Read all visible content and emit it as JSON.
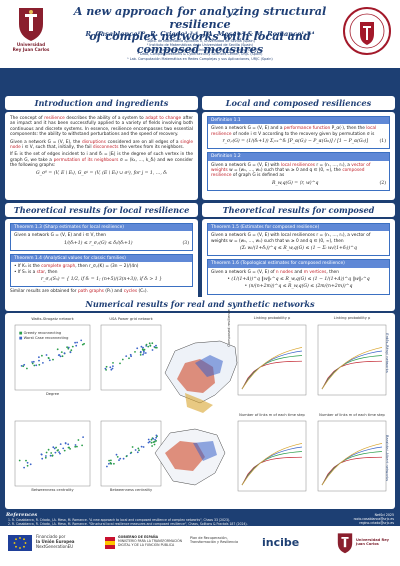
{
  "header": {
    "title_line1": "A new approach for analyzing structural resilience",
    "title_line2": "of complex networks with local and composed measures",
    "authors": "R. Casablanca¹·², R. Criado¹·³·⁴, J.A. Mesa¹·² & M. Romance¹·³·⁴",
    "affiliations": [
      "¹ Dpto. de Matemática Aplicada II, Universidad de Sevilla (Spain)",
      "² Instituto de Matemáticas de la Universidad de Sevilla (Spain)",
      "³ Dpto. de Matemática Aplicada, Universidad Rey Juan Carlos (Spain)",
      "⁴ Data, Complex Networks & Cybersecurity Sciences Center, URJC (Spain)",
      "⁵ Lab. Computación Matemática en Redes Complejas y sus Aplicaciones, URJC (Spain)"
    ],
    "urjc_label_line1": "Universidad",
    "urjc_label_line2": "Rey Juan Carlos",
    "seal_text": "UNIVERSIDAD DE SEVILLA"
  },
  "intro": {
    "heading": "Introduction and ingredients",
    "p1_a": "The concept of ",
    "p1_hl1": "resilience",
    "p1_b": " describes the ability of a system to ",
    "p1_hl2": "adapt to change",
    "p1_c": " after an impact and it has been successfully applied to a variety of fields involving both continuous and discrete systems. In essence, resilience encompasses two essential components: the ability to withstand perturbations and the speed of recovery.",
    "p2_a": "Given a network G = (V, E), the ",
    "p2_hl1": "disruptions",
    "p2_b": " considered are on all edges of a ",
    "p2_hl2": "single node",
    "p2_c": " i ∈ V, such that, initially, the fail ",
    "p2_hl3": "disconnects",
    "p2_d": " the vertex from its neighbors.",
    "p3_a": "If Eᵢ is the set of edges incident to i and δᵢ = |Eᵢ| is the degree of such vertex in the graph G, we take a ",
    "p3_hl": "permutation of its neighbours",
    "p3_b": " σ = (k₁, …, k_δᵢ) and we consider the following graphs:",
    "formula": "G_σ⁰ = (V, E \\ Eᵢ),   G_σʲ = (V, (E \\ Eᵢ) ∪ σʲ), for j = 1, …, δᵢ"
  },
  "local": {
    "heading": "Local and composed resiliences",
    "def1_title": "Definition 1.1",
    "def1_a": "Given a network G = (V, E) and a ",
    "def1_hl1": "performance function",
    "def1_b": " P_α(·), then the ",
    "def1_hl2": "local resilience",
    "def1_c": " of node i ∈ V according to the recovery given by permutation σ is",
    "def1_formula": "r_σ,ᵢ(G) = (1/(δᵢ+1)) Σⱼ₌₁^δᵢ [P_α(Gⱼ) − P_α(G₀)] / [1 − P_α(G₀)]",
    "def1_eq": "(1)",
    "def2_title": "Definition 1.2",
    "def2_a": "Given a network G = (V, E) with ",
    "def2_hl1": "local resiliences",
    "def2_b": " r = (r₁, …, rₙ), a ",
    "def2_hl2": "vector of weights",
    "def2_c": " w = (w₁, …, wₙ) such that wᵢ ≥ 0 and q ∈ (0, ∞), the ",
    "def2_hl3": "composed resilience",
    "def2_d": " of graph G is defined as",
    "def2_formula": "R_w,q(G) = ⟨r, w⟩^q",
    "def2_eq": "(2)"
  },
  "theo_local": {
    "heading": "Theoretical results for local resilience",
    "t13_title": "Theorem 1.3 (Sharp estimates for local resilience)",
    "t13_text": "Given a network G = (V, E) and i ∈ V, then",
    "t13_formula": "1/(δᵢ+1) ≤ r_σ,ᵢ(G) ≤ δᵢ/(δᵢ+1)",
    "t13_eq": "(3)",
    "t14_title": "Theorem 1.4 (Analytical values for classic families)",
    "t14_b1_a": "If Kₙ is the ",
    "t14_b1_hl": "complete graph",
    "t14_b1_b": ", then r_σ,ᵢ(K) = (3n − 2)/(4n)",
    "t14_b2_a": "If Sₙ is a ",
    "t14_b2_hl": "star",
    "t14_b2_b": ", then",
    "t14_cases": "r_σ,ᵢ(Sₙ) = { 1/2, if δᵢ = 1;  (n+5)/(3(n+3)), if δᵢ > 1 }",
    "footer_a": "Similar results are obtained for ",
    "footer_hl": "path graphs",
    "footer_b": " (Pₙ) and ",
    "footer_hl2": "cycles",
    "footer_c": " (Cₙ)."
  },
  "theo_composed": {
    "heading": "Theoretical results for composed resilience",
    "t15_title": "Theorem 1.5 (Estimates for composed resilience)",
    "t15_text": "Given a network G = (V, E) with local resiliences r = (r₁, …, rₙ), a vector of weights w = (w₁, …, wₙ) such that wᵢ ≥ 0 and q ∈ (0, ∞), then",
    "t15_formula": "(Σᵢ wᵢ/(1+δᵢ))^q ≤ R_w,q(G) ≤ (1 − Σᵢ wᵢ/(1+δᵢ))^q",
    "t16_title": "Theorem 1.6 (Topological estimates for composed resilience)",
    "t16_text_a": "Given a network G = (V, E) of ",
    "t16_hl1": "n nodes",
    "t16_text_b": " and ",
    "t16_hl2": "m vertices",
    "t16_text_c": ", then",
    "t16_b1": "(1/(1+Δ))^q ‖w‖₁^q ≤ R_w,q(G) ≤ (1 − 1/(1+Δ))^q ‖w‖₁^q",
    "t16_b2": "(n/(n+2m))^q ≤ R_w,q(G) ≤ (2m/(n+2m))^q"
  },
  "numerical": {
    "heading": "Numerical results for real and synthetic networks",
    "panel1_title": "Watts-Strogatz network",
    "panel2_title": "USA Power grid network",
    "legend_green": "Greedy reconnecting",
    "legend_blue": "Worst Case reconnecting",
    "xlabel_degree": "Degree",
    "xlabel_betweenness": "Betweenness centrality",
    "xlabel_pr": "Pr",
    "right1_title": "Linking probability p",
    "right2_title": "Linking probability p",
    "right3_title": "Number of links m of each time step",
    "right4_title": "Number of links m of each time step",
    "ylabel_composed": "Composed resilience",
    "ylabel_er": "Erdős–Rényi networks",
    "ylabel_ba": "Barabási–Albert networks"
  },
  "refs": {
    "heading": "References",
    "r1": "1. R. Casablanca, R. Criado, J.A. Mesa, M. Romance. \"A new approach to local and composed resilience of complex networks\", Chaos 33 (2023).",
    "r2": "2. R. Casablanca, R. Criado, J.A. Mesa, M. Romance. \"Structural local resilience measures and composed resilience\", Chaos, Solitons & Fractals 187 (2024).",
    "conf_line1": "NetSci 2025",
    "conf_line2": "rocio.casablanca@urjc.es",
    "conf_line3": "regino.criado@urjc.es"
  },
  "funders": {
    "eu_line1": "Financiado por",
    "eu_line2": "la Unión Europea",
    "eu_line3": "NextGenerationEU",
    "gov": "GOBIERNO DE ESPAÑA",
    "ministry": "MINISTERIO PARA LA TRANSFORMACIÓN DIGITAL Y DE LA FUNCIÓN PÚBLICA",
    "prtr": "Plan de Recuperación, Transformación y Resiliencia",
    "incibe": "incibe",
    "urjc": "Universidad Rey Juan Carlos"
  },
  "colors": {
    "navy": "#1d3f73",
    "red": "#c0202a",
    "boxblue": "#5f88d6",
    "green": "#2a9d4a",
    "blue": "#3a63c8"
  },
  "chart_data": [
    {
      "type": "scatter",
      "title": "Watts-Strogatz network",
      "xlabel": "Degree",
      "series": [
        {
          "name": "Greedy reconnecting"
        },
        {
          "name": "Worst Case reconnecting"
        }
      ]
    },
    {
      "type": "scatter",
      "title": "",
      "xlabel": "Betweenness centrality",
      "series": [
        {
          "name": "Greedy reconnecting"
        },
        {
          "name": "Worst Case reconnecting"
        }
      ]
    },
    {
      "type": "line",
      "title": "Linking probability p",
      "ylabel": "Composed resilience"
    },
    {
      "type": "line",
      "title": "Number of links m of each time step",
      "ylabel": "Composed resilience"
    }
  ]
}
